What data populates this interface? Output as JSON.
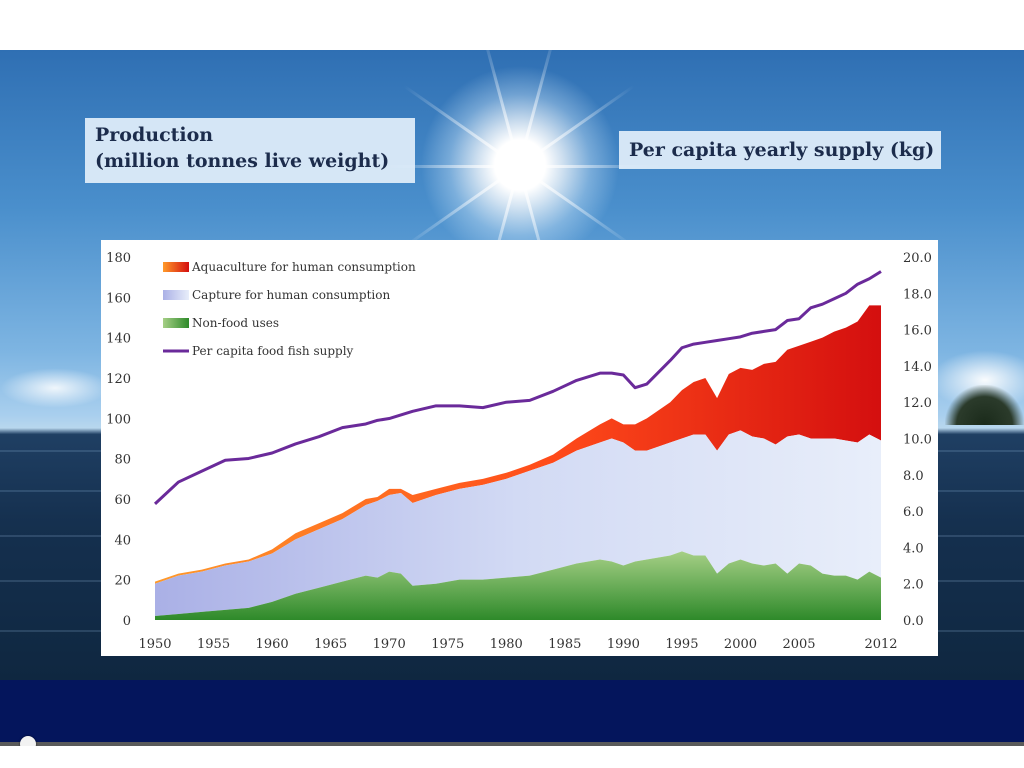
{
  "labels": {
    "left_line1": "Production",
    "left_line2": "(million tonnes live weight)",
    "right": "Per capita yearly supply (kg)"
  },
  "video": {
    "progress": 0.0
  },
  "chart_data": {
    "type": "area",
    "title": "",
    "left_axis": {
      "label": "Production (million tonnes live weight)",
      "range": [
        0,
        180
      ],
      "ticks": [
        "0",
        "20",
        "40",
        "60",
        "80",
        "100",
        "120",
        "140",
        "160",
        "180"
      ]
    },
    "right_axis": {
      "label": "Per capita yearly supply (kg)",
      "range": [
        0,
        20
      ],
      "ticks": [
        "0.0",
        "2.0",
        "4.0",
        "6.0",
        "8.0",
        "10.0",
        "12.0",
        "14.0",
        "16.0",
        "18.0",
        "20.0"
      ]
    },
    "x_ticks": [
      "1950",
      "1955",
      "1960",
      "1965",
      "1970",
      "1975",
      "1980",
      "1985",
      "1990",
      "1995",
      "2000",
      "2005",
      "2012"
    ],
    "legend_position": "top-left",
    "legend": [
      {
        "label": "Aquaculture for human consumption",
        "swatch": "aquaculture"
      },
      {
        "label": "Capture for human consumption",
        "swatch": "capture"
      },
      {
        "label": "Non-food uses",
        "swatch": "nonfood"
      },
      {
        "label": "Per capita food fish supply",
        "swatch": "line"
      }
    ],
    "colors": {
      "aquaculture_dark": "#d40f0f",
      "aquaculture_light": "#ff8a1a",
      "capture_dark": "#b8bceb",
      "capture_light": "#e4ecf8",
      "nonfood_dark": "#2e8a2a",
      "nonfood_light": "#a8d08a",
      "line": "#6a2a9a"
    },
    "x": [
      1950,
      1952,
      1954,
      1956,
      1958,
      1960,
      1962,
      1964,
      1966,
      1968,
      1969,
      1970,
      1971,
      1972,
      1974,
      1976,
      1978,
      1980,
      1982,
      1984,
      1986,
      1988,
      1989,
      1990,
      1991,
      1992,
      1994,
      1995,
      1996,
      1997,
      1998,
      1999,
      2000,
      2001,
      2002,
      2003,
      2004,
      2005,
      2006,
      2007,
      2008,
      2009,
      2010,
      2011,
      2012
    ],
    "series": [
      {
        "name": "Non-food uses",
        "axis": "left",
        "values": [
          2,
          3,
          4,
          5,
          6,
          9,
          13,
          16,
          19,
          22,
          21,
          24,
          23,
          17,
          18,
          20,
          20,
          21,
          22,
          25,
          28,
          30,
          29,
          27,
          29,
          30,
          32,
          34,
          32,
          32,
          23,
          28,
          30,
          28,
          27,
          28,
          23,
          28,
          27,
          23,
          22,
          22,
          20,
          24,
          21
        ]
      },
      {
        "name": "Capture for human consumption (cumulative top)",
        "axis": "left",
        "values": [
          18,
          22,
          24,
          27,
          29,
          33,
          40,
          45,
          50,
          57,
          59,
          62,
          63,
          58,
          62,
          65,
          67,
          70,
          74,
          78,
          84,
          88,
          90,
          88,
          84,
          84,
          88,
          90,
          92,
          92,
          84,
          92,
          94,
          91,
          90,
          87,
          91,
          92,
          90,
          90,
          90,
          89,
          88,
          92,
          89
        ]
      },
      {
        "name": "Aquaculture for human consumption (cumulative top)",
        "axis": "left",
        "values": [
          19,
          23,
          25,
          28,
          30,
          35,
          43,
          48,
          53,
          60,
          61,
          65,
          65,
          62,
          65,
          68,
          70,
          73,
          77,
          82,
          90,
          97,
          100,
          97,
          97,
          100,
          108,
          114,
          118,
          120,
          110,
          122,
          125,
          124,
          127,
          128,
          134,
          136,
          138,
          140,
          143,
          145,
          148,
          156,
          156
        ]
      },
      {
        "name": "Per capita food fish supply",
        "axis": "right",
        "values": [
          6.4,
          7.6,
          8.2,
          8.8,
          8.9,
          9.2,
          9.7,
          10.1,
          10.6,
          10.8,
          11.0,
          11.1,
          11.3,
          11.5,
          11.8,
          11.8,
          11.7,
          12.0,
          12.1,
          12.6,
          13.2,
          13.6,
          13.6,
          13.5,
          12.8,
          13.0,
          14.3,
          15.0,
          15.2,
          15.3,
          15.4,
          15.5,
          15.6,
          15.8,
          15.9,
          16.0,
          16.5,
          16.6,
          17.2,
          17.4,
          17.7,
          18.0,
          18.5,
          18.8,
          19.2
        ]
      }
    ]
  }
}
